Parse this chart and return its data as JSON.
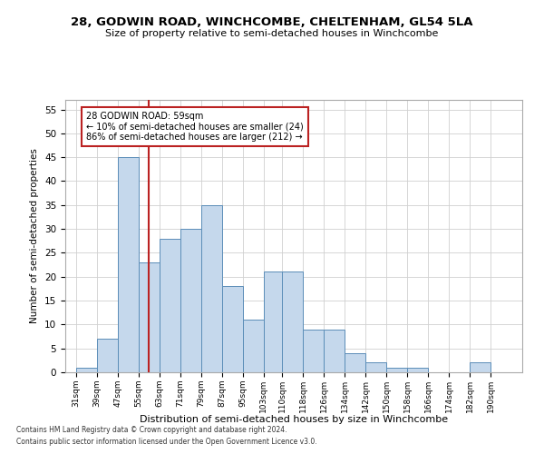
{
  "title": "28, GODWIN ROAD, WINCHCOMBE, CHELTENHAM, GL54 5LA",
  "subtitle": "Size of property relative to semi-detached houses in Winchcombe",
  "xlabel": "Distribution of semi-detached houses by size in Winchcombe",
  "ylabel": "Number of semi-detached properties",
  "footer1": "Contains HM Land Registry data © Crown copyright and database right 2024.",
  "footer2": "Contains public sector information licensed under the Open Government Licence v3.0.",
  "annotation_title": "28 GODWIN ROAD: 59sqm",
  "annotation_line1": "← 10% of semi-detached houses are smaller (24)",
  "annotation_line2": "86% of semi-detached houses are larger (212) →",
  "property_line_x": 59,
  "categories": [
    "31sqm",
    "39sqm",
    "47sqm",
    "55sqm",
    "63sqm",
    "71sqm",
    "79sqm",
    "87sqm",
    "95sqm",
    "103sqm",
    "110sqm",
    "118sqm",
    "126sqm",
    "134sqm",
    "142sqm",
    "150sqm",
    "158sqm",
    "166sqm",
    "174sqm",
    "182sqm",
    "190sqm"
  ],
  "bin_edges": [
    31,
    39,
    47,
    55,
    63,
    71,
    79,
    87,
    95,
    103,
    110,
    118,
    126,
    134,
    142,
    150,
    158,
    166,
    174,
    182,
    190
  ],
  "values": [
    1,
    7,
    45,
    23,
    28,
    30,
    35,
    18,
    11,
    21,
    21,
    9,
    9,
    4,
    2,
    1,
    1,
    0,
    0,
    2,
    0
  ],
  "bar_color": "#c5d8ec",
  "bar_edge_color": "#5b8db8",
  "grid_color": "#d0d0d0",
  "vline_color": "#bb2222",
  "annotation_box_color": "#bb2222",
  "background_color": "#ffffff",
  "ylim": [
    0,
    57
  ],
  "yticks": [
    0,
    5,
    10,
    15,
    20,
    25,
    30,
    35,
    40,
    45,
    50,
    55
  ]
}
